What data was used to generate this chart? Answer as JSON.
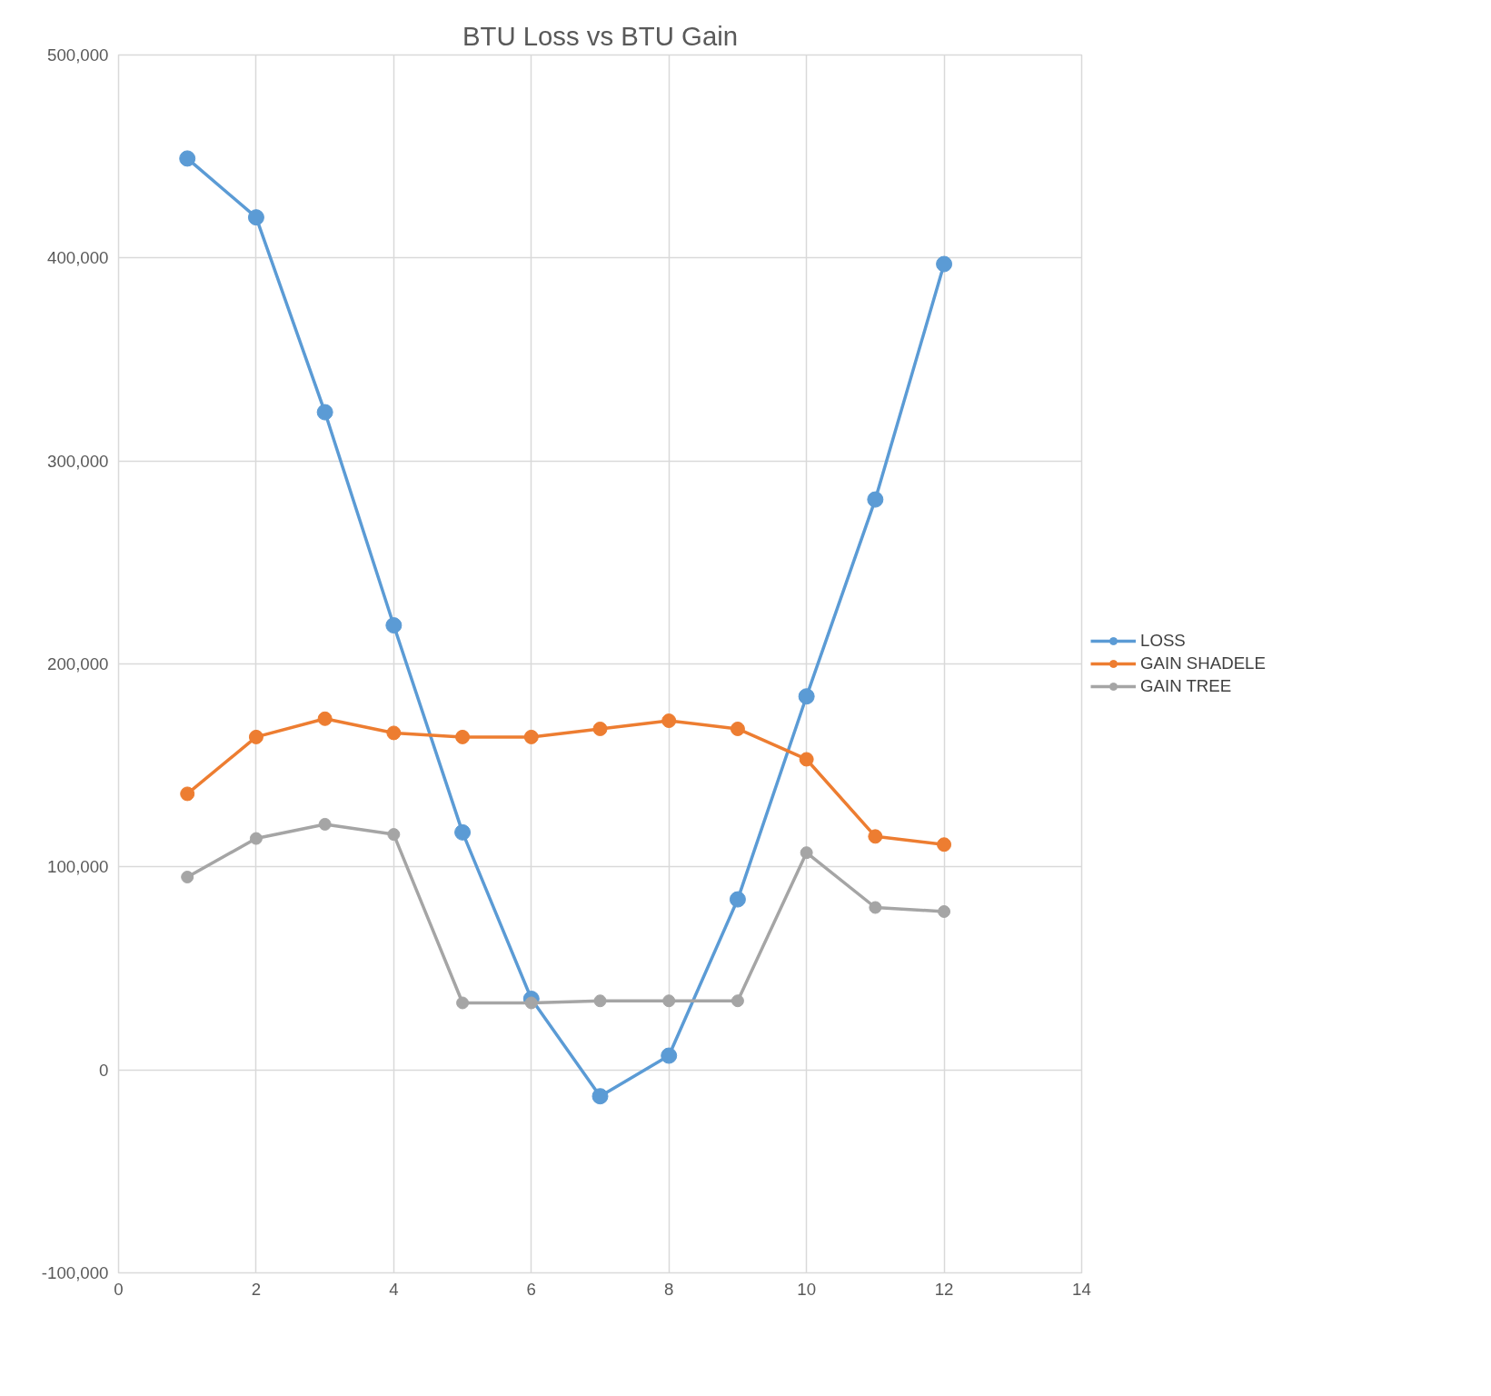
{
  "chart_data": {
    "type": "line",
    "title": "BTU Loss vs BTU Gain",
    "x": [
      1,
      2,
      3,
      4,
      5,
      6,
      7,
      8,
      9,
      10,
      11,
      12
    ],
    "series": [
      {
        "name": "LOSS",
        "color": "#5b9bd5",
        "values": [
          449000,
          420000,
          324000,
          219000,
          117000,
          35000,
          -13000,
          7000,
          84000,
          184000,
          281000,
          397000
        ]
      },
      {
        "name": "GAIN SHADELE",
        "color": "#ed7d31",
        "values": [
          136000,
          164000,
          173000,
          166000,
          164000,
          164000,
          168000,
          172000,
          168000,
          153000,
          115000,
          111000
        ]
      },
      {
        "name": "GAIN TREE",
        "color": "#a5a5a5",
        "values": [
          95000,
          114000,
          121000,
          116000,
          33000,
          33000,
          34000,
          34000,
          34000,
          107000,
          80000,
          78000
        ]
      }
    ],
    "xlim": [
      0,
      14
    ],
    "xticks": [
      0,
      2,
      4,
      6,
      8,
      10,
      12,
      14
    ],
    "ylim": [
      -100000,
      500000
    ],
    "yticks": [
      {
        "value": -100000,
        "label": "-100,000"
      },
      {
        "value": 0,
        "label": "0"
      },
      {
        "value": 100000,
        "label": "100,000"
      },
      {
        "value": 200000,
        "label": "200,000"
      },
      {
        "value": 300000,
        "label": "300,000"
      },
      {
        "value": 400000,
        "label": "400,000"
      },
      {
        "value": 500000,
        "label": "500,000"
      }
    ],
    "grid": true,
    "legend": "right",
    "marker": "circle",
    "line_style": "solid"
  }
}
